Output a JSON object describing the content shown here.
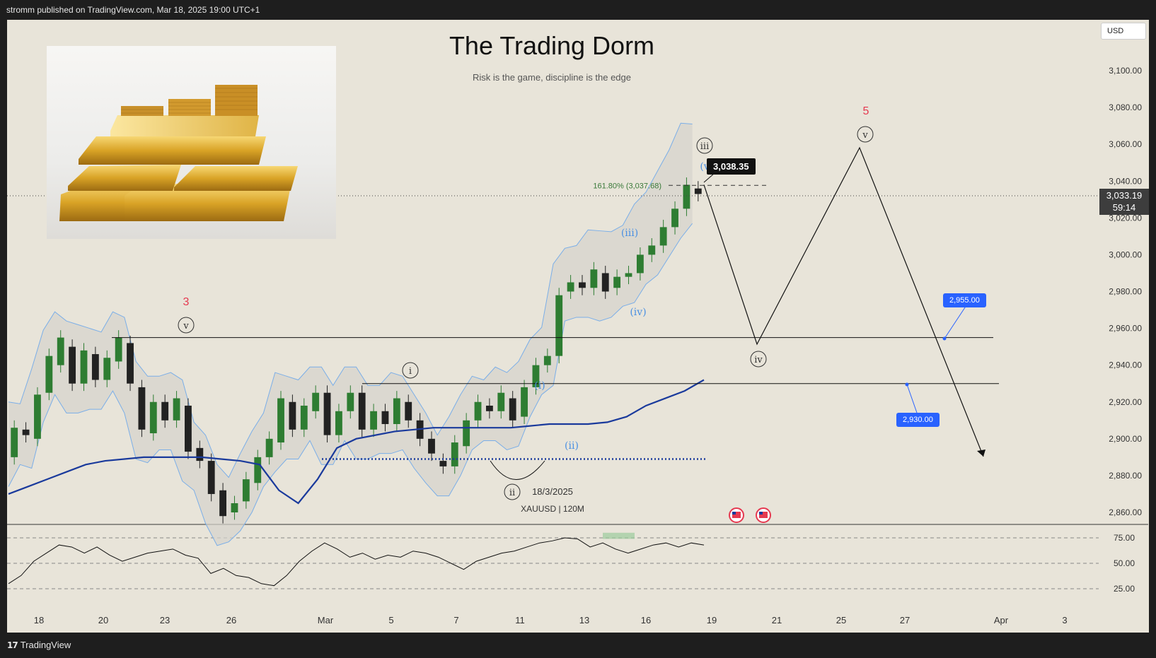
{
  "header": {
    "published_by": "stromm published on TradingView.com, Mar 18, 2025 19:00 UTC+1"
  },
  "footer": {
    "brand": "TradingView"
  },
  "overlay": {
    "title": "The Trading Dorm",
    "subtitle": "Risk is the game, discipline is the edge",
    "symbol_label": "XAUUSD | 120M",
    "date_label": "18/3/2025",
    "currency": "USD",
    "last_price": "3,033.19",
    "countdown": "59:14",
    "peak_label": "3,038.35",
    "fib_label": "161.80% (3,037.68)",
    "target_upper": "2,955.00",
    "target_lower": "2,930.00",
    "wave_labels": {
      "w3": "3",
      "w5": "5",
      "v_left": "v",
      "i": "i",
      "ii": "ii",
      "iii": "iii",
      "iv": "iv",
      "v_right": "v",
      "sub_i": "(i)",
      "sub_ii": "(ii)",
      "sub_iii": "(iii)",
      "sub_iv": "(iv)",
      "sub_v": "(v"
    }
  },
  "colors": {
    "background": "#e8e4d9",
    "up_candle": "#2e7d32",
    "down_candle": "#222222",
    "vwap": "#1a3a9c",
    "band": "#7aaee8",
    "wave_red": "#e53950",
    "wave_blue": "#4a90e2",
    "callout_blue": "#2962ff"
  },
  "chart_data": [
    {
      "type": "candlestick",
      "symbol": "XAUUSD",
      "interval": "120M",
      "ylim": [
        2850,
        3120
      ],
      "y_ticks": [
        2860,
        2880,
        2900,
        2920,
        2940,
        2960,
        2980,
        3000,
        3020,
        3040,
        3060,
        3080,
        3100
      ],
      "y_tick_labels": [
        "2,860.00",
        "2,880.00",
        "2,900.00",
        "2,920.00",
        "2,940.00",
        "2,960.00",
        "2,980.00",
        "3,000.00",
        "3,020.00",
        "3,040.00",
        "3,060.00",
        "3,080.00",
        "3,100.00"
      ],
      "x_tick_labels": [
        "18",
        "20",
        "23",
        "26",
        "Mar",
        "5",
        "7",
        "11",
        "13",
        "16",
        "19",
        "21",
        "25",
        "27",
        "Apr",
        "3"
      ],
      "price_path": [
        [
          2890,
          2906
        ],
        [
          2905,
          2902
        ],
        [
          2900,
          2924
        ],
        [
          2925,
          2945
        ],
        [
          2940,
          2955
        ],
        [
          2950,
          2930
        ],
        [
          2930,
          2948
        ],
        [
          2946,
          2932
        ],
        [
          2932,
          2944
        ],
        [
          2942,
          2955
        ],
        [
          2952,
          2930
        ],
        [
          2928,
          2905
        ],
        [
          2903,
          2920
        ],
        [
          2920,
          2910
        ],
        [
          2910,
          2922
        ],
        [
          2918,
          2893
        ],
        [
          2895,
          2888
        ],
        [
          2888,
          2870
        ],
        [
          2872,
          2858
        ],
        [
          2860,
          2865
        ],
        [
          2866,
          2878
        ],
        [
          2876,
          2890
        ],
        [
          2890,
          2900
        ],
        [
          2898,
          2922
        ],
        [
          2920,
          2905
        ],
        [
          2905,
          2918
        ],
        [
          2915,
          2925
        ],
        [
          2925,
          2902
        ],
        [
          2902,
          2915
        ],
        [
          2915,
          2925
        ],
        [
          2925,
          2905
        ],
        [
          2905,
          2915
        ],
        [
          2915,
          2908
        ],
        [
          2908,
          2922
        ],
        [
          2920,
          2910
        ],
        [
          2910,
          2900
        ],
        [
          2900,
          2892
        ],
        [
          2888,
          2885
        ],
        [
          2885,
          2898
        ],
        [
          2896,
          2910
        ],
        [
          2910,
          2920
        ],
        [
          2918,
          2915
        ],
        [
          2915,
          2925
        ],
        [
          2922,
          2910
        ],
        [
          2912,
          2928
        ],
        [
          2928,
          2940
        ],
        [
          2940,
          2945
        ],
        [
          2945,
          2978
        ],
        [
          2980,
          2985
        ],
        [
          2985,
          2982
        ],
        [
          2982,
          2992
        ],
        [
          2990,
          2980
        ],
        [
          2982,
          2988
        ],
        [
          2988,
          2990
        ],
        [
          2990,
          3000
        ],
        [
          3000,
          3005
        ],
        [
          3005,
          3015
        ],
        [
          3015,
          3025
        ],
        [
          3025,
          3038
        ],
        [
          3036,
          3033
        ]
      ],
      "vwap": [
        2870,
        2874,
        2878,
        2882,
        2886,
        2888,
        2889,
        2890,
        2890,
        2890,
        2890,
        2889,
        2888,
        2886,
        2872,
        2865,
        2878,
        2895,
        2900,
        2902,
        2904,
        2905,
        2906,
        2906,
        2906,
        2906,
        2906,
        2907,
        2908,
        2908,
        2908,
        2909,
        2912,
        2918,
        2922,
        2926,
        2932
      ],
      "anchored_level": 2889,
      "forecast_path": [
        {
          "date": "Mar 18",
          "value": 3038
        },
        {
          "date": "Mar 20",
          "value": 2952
        },
        {
          "date": "Mar 25",
          "value": 3060
        },
        {
          "date": "Mar 31",
          "value": 2888
        }
      ],
      "fibonacci": {
        "level": "161.80%",
        "price": 3037.68
      },
      "horizontal_levels": [
        2955,
        2930
      ],
      "targets": [
        2955,
        2930
      ]
    },
    {
      "type": "line",
      "name": "RSI",
      "ylim": [
        15,
        85
      ],
      "y_ticks": [
        25,
        50,
        75
      ],
      "y_tick_labels": [
        "25.00",
        "50.00",
        "75.00"
      ],
      "overbought": 70,
      "oversold": 30,
      "values": [
        30,
        38,
        52,
        60,
        68,
        66,
        60,
        66,
        58,
        52,
        56,
        60,
        62,
        64,
        58,
        55,
        40,
        45,
        38,
        36,
        30,
        28,
        38,
        52,
        62,
        70,
        64,
        56,
        60,
        54,
        58,
        56,
        62,
        60,
        56,
        50,
        44,
        52,
        56,
        60,
        62,
        66,
        70,
        72,
        75,
        74,
        66,
        70,
        64,
        60,
        64,
        68,
        70,
        66,
        70,
        68
      ]
    }
  ]
}
